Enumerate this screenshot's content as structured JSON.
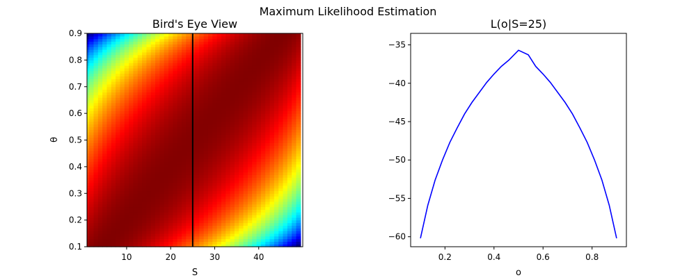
{
  "figure": {
    "suptitle": "Maximum Likelihood Estimation"
  },
  "chart_data": [
    {
      "type": "heatmap",
      "title": "Bird's Eye View",
      "xlabel": "S",
      "ylabel": "θ",
      "xlim": [
        1,
        50
      ],
      "ylim": [
        0.1,
        0.9
      ],
      "xticks": [
        10,
        20,
        30,
        40
      ],
      "yticks": [
        0.1,
        0.2,
        0.3,
        0.4,
        0.5,
        0.6,
        0.7,
        0.8,
        0.9
      ],
      "colormap": "jet",
      "color_range": [
        "#00007f",
        "#7f0000"
      ],
      "value_model": "binomial log-likelihood ln C(n,S) + S·ln θ + (n−S)·ln(1−θ), n = 50",
      "vertical_line": {
        "x": 25,
        "color": "#000000"
      },
      "grid": false
    },
    {
      "type": "line",
      "title": "L(o|S=25)",
      "xlabel": "o",
      "ylabel": "",
      "xlim": [
        0.06,
        0.94
      ],
      "ylim": [
        -61.3,
        -33.5
      ],
      "xticks": [
        0.2,
        0.4,
        0.6,
        0.8
      ],
      "yticks": [
        -35,
        -40,
        -45,
        -50,
        -55,
        -60
      ],
      "grid": false,
      "series": [
        {
          "color": "#0000ff",
          "x": [
            0.1,
            0.13,
            0.16,
            0.19,
            0.22,
            0.25,
            0.28,
            0.31,
            0.34,
            0.37,
            0.4,
            0.43,
            0.46,
            0.5,
            0.54,
            0.57,
            0.6,
            0.63,
            0.66,
            0.69,
            0.72,
            0.75,
            0.78,
            0.81,
            0.84,
            0.87,
            0.9
          ],
          "y": [
            -60.2,
            -55.9,
            -52.6,
            -50.0,
            -47.7,
            -45.8,
            -44.0,
            -42.5,
            -41.2,
            -39.9,
            -38.8,
            -37.8,
            -37.0,
            -35.7,
            -36.3,
            -37.8,
            -38.8,
            -39.9,
            -41.2,
            -42.5,
            -44.0,
            -45.8,
            -47.7,
            -50.0,
            -52.6,
            -55.9,
            -60.2
          ]
        }
      ]
    }
  ]
}
